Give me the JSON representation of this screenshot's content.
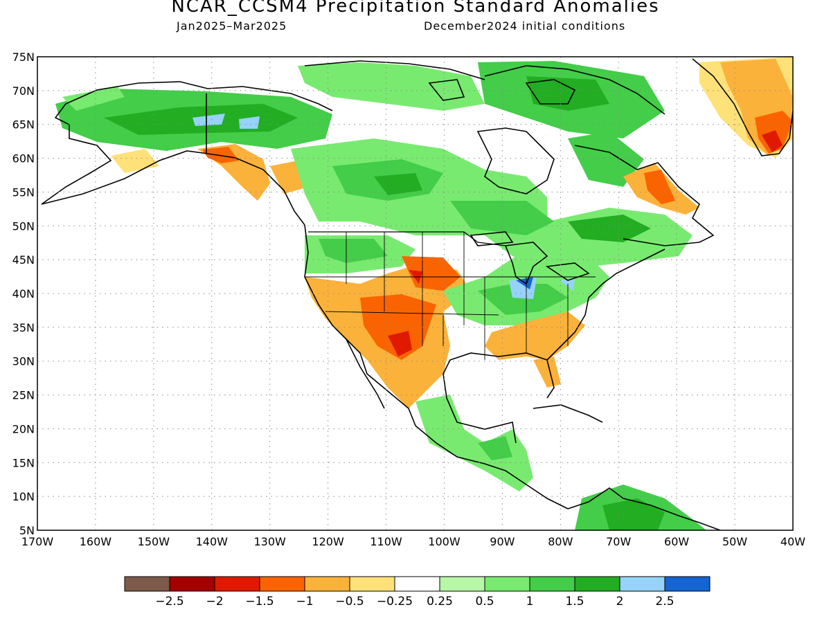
{
  "header": {
    "title": "NCAR_CCSM4 Precipitation Standard Anomalies",
    "period": "Jan2025–Mar2025",
    "initial_conditions": "December2024 initial conditions"
  },
  "map": {
    "lat_labels": [
      "75N",
      "70N",
      "65N",
      "60N",
      "55N",
      "50N",
      "45N",
      "40N",
      "35N",
      "30N",
      "25N",
      "20N",
      "15N",
      "10N",
      "5N"
    ],
    "lon_labels": [
      "170W",
      "160W",
      "150W",
      "140W",
      "130W",
      "120W",
      "110W",
      "100W",
      "90W",
      "80W",
      "70W",
      "60W",
      "50W",
      "40W"
    ],
    "lat_range": [
      5,
      75
    ],
    "lon_range": [
      -170,
      -40
    ],
    "gridlines": "dotted"
  },
  "legend": {
    "colors": [
      "#7d5a4a",
      "#a50000",
      "#e01a00",
      "#fa6400",
      "#fbb23a",
      "#ffe17a",
      "#ffffff",
      "#b7f7a7",
      "#78ea70",
      "#43cd49",
      "#22ad22",
      "#96d2fa",
      "#1464d2"
    ],
    "labels": [
      "−2.5",
      "−2",
      "−1.5",
      "−1",
      "−0.5",
      "−0.25",
      "0.25",
      "0.5",
      "1",
      "1.5",
      "2",
      "2.5"
    ]
  }
}
